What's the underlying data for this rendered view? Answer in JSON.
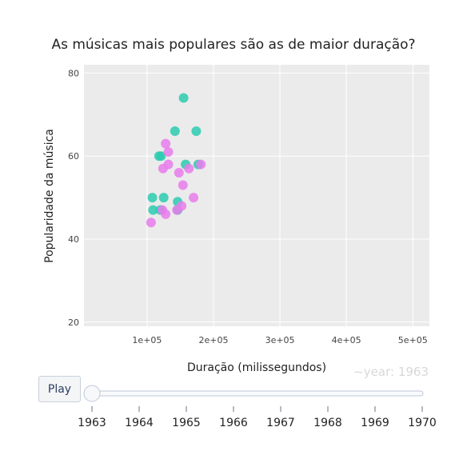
{
  "chart_data": {
    "type": "scatter",
    "title": "As músicas mais populares são as de maior duração?",
    "xlabel": "Duração (milissegundos)",
    "ylabel": "Popularidade da música",
    "xlim": [
      5000,
      525000
    ],
    "ylim": [
      19,
      82
    ],
    "x_ticks": [
      100000,
      200000,
      300000,
      400000,
      500000
    ],
    "x_tick_labels": [
      "1e+05",
      "2e+05",
      "3e+05",
      "4e+05",
      "5e+05"
    ],
    "y_ticks": [
      20,
      40,
      60,
      80
    ],
    "y_tick_labels": [
      "20",
      "40",
      "60",
      "80"
    ],
    "grid": true,
    "legend": "none",
    "series": [
      {
        "color": "#2ccbb0",
        "points": [
          {
            "x": 155000,
            "y": 74
          },
          {
            "x": 142000,
            "y": 66
          },
          {
            "x": 174000,
            "y": 66
          },
          {
            "x": 118000,
            "y": 60
          },
          {
            "x": 121000,
            "y": 60
          },
          {
            "x": 158000,
            "y": 58
          },
          {
            "x": 177000,
            "y": 58
          },
          {
            "x": 108000,
            "y": 50
          },
          {
            "x": 125000,
            "y": 50
          },
          {
            "x": 146000,
            "y": 49
          },
          {
            "x": 109000,
            "y": 47
          },
          {
            "x": 120000,
            "y": 47
          },
          {
            "x": 146000,
            "y": 47
          }
        ]
      },
      {
        "color": "#e77ceb",
        "points": [
          {
            "x": 128000,
            "y": 63
          },
          {
            "x": 132000,
            "y": 61
          },
          {
            "x": 132000,
            "y": 58
          },
          {
            "x": 181000,
            "y": 58
          },
          {
            "x": 124000,
            "y": 57
          },
          {
            "x": 163000,
            "y": 57
          },
          {
            "x": 148000,
            "y": 56
          },
          {
            "x": 154000,
            "y": 53
          },
          {
            "x": 170000,
            "y": 50
          },
          {
            "x": 152000,
            "y": 48
          },
          {
            "x": 123000,
            "y": 47
          },
          {
            "x": 145000,
            "y": 47
          },
          {
            "x": 128000,
            "y": 46
          },
          {
            "x": 106000,
            "y": 44
          }
        ]
      }
    ]
  },
  "slider": {
    "play_label": "Play",
    "current_label": "~year: 1963",
    "steps": [
      "1963",
      "1964",
      "1965",
      "1966",
      "1967",
      "1968",
      "1969",
      "1970"
    ],
    "active_index": 0
  }
}
